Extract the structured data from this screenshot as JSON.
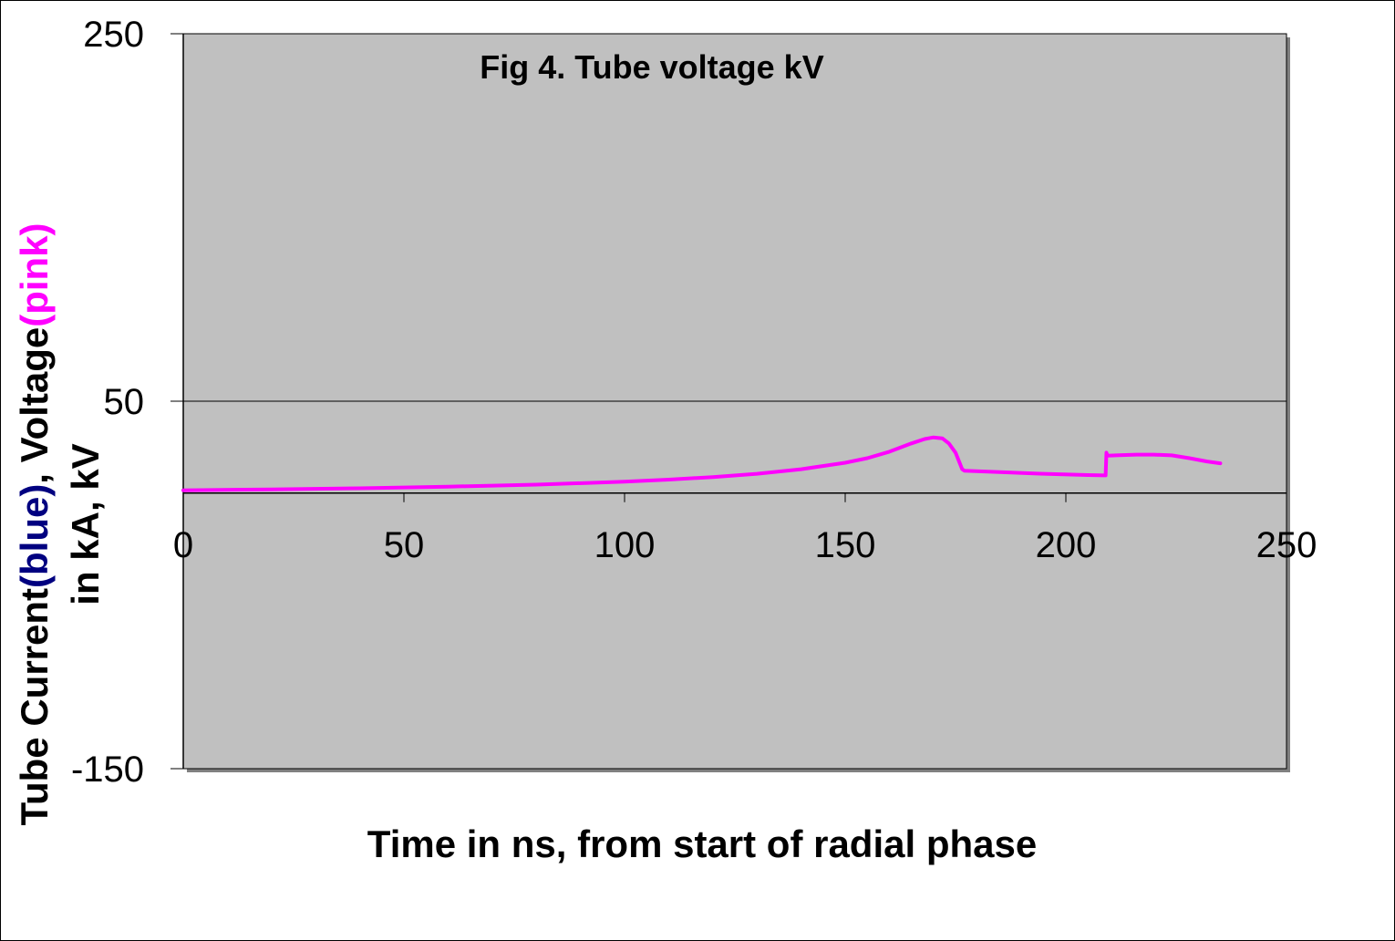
{
  "chart_data": {
    "type": "line",
    "title": "Fig 4. Tube voltage kV",
    "xlabel": "Time in ns, from start of radial phase",
    "ylabel": {
      "line1_parts": [
        {
          "text": "Tube Current",
          "color": "#000000"
        },
        {
          "text": "(blue)",
          "color": "#000080"
        },
        {
          "text": ", Voltage",
          "color": "#000000"
        },
        {
          "text": "(pink)",
          "color": "#ff00ff"
        }
      ],
      "line2": "in kA, kV"
    },
    "xlim": [
      0,
      250
    ],
    "ylim": [
      -150,
      250
    ],
    "x_ticks": [
      "0",
      "50",
      "100",
      "150",
      "200",
      "250"
    ],
    "y_ticks": [
      "250",
      "50",
      "-150"
    ],
    "x_tick_values": [
      0,
      50,
      100,
      150,
      200,
      250
    ],
    "y_tick_values": [
      250,
      50,
      -150
    ],
    "gridlines_y": [
      50
    ],
    "plot_background": "#c0c0c0",
    "series": [
      {
        "color": "#ff00ff",
        "x": [
          0,
          20,
          40,
          60,
          80,
          100,
          110,
          120,
          130,
          140,
          150,
          155,
          160,
          165,
          168,
          170,
          172,
          173.5,
          175,
          176.5,
          177,
          185,
          195,
          205,
          209,
          209.2,
          209.4,
          212,
          216,
          220,
          224,
          228,
          232,
          235
        ],
        "y": [
          1.5,
          2,
          2.6,
          3.5,
          4.6,
          6.2,
          7.3,
          8.7,
          10.5,
          13,
          16.5,
          19,
          22.5,
          27,
          29.4,
          30.3,
          29.8,
          27,
          22,
          13,
          12.2,
          11.4,
          10.5,
          9.8,
          9.6,
          22,
          20.3,
          20.6,
          20.9,
          20.9,
          20.5,
          19,
          17.2,
          16.2
        ]
      }
    ]
  }
}
